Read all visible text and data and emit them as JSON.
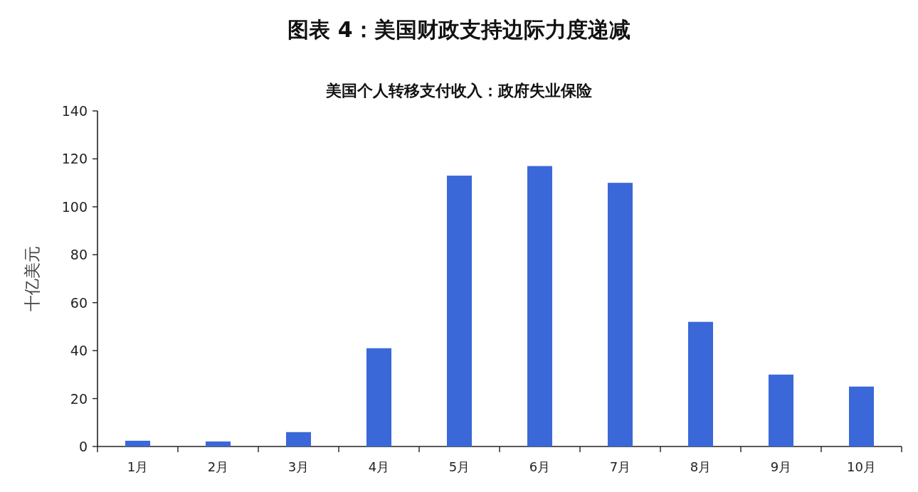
{
  "chart_data": {
    "type": "bar",
    "title": "图表 4：美国财政支持边际力度递减",
    "subtitle": "美国个人转移支付收入：政府失业保险",
    "ylabel": "十亿美元",
    "categories": [
      "1月",
      "2月",
      "3月",
      "4月",
      "5月",
      "6月",
      "7月",
      "8月",
      "9月",
      "10月"
    ],
    "values": [
      2.4,
      2.1,
      6,
      41,
      113,
      117,
      110,
      52,
      30,
      25
    ],
    "color": "#3b68d8",
    "ylim": [
      0,
      140
    ],
    "yticks": [
      0,
      20,
      40,
      60,
      80,
      100,
      120,
      140
    ]
  }
}
